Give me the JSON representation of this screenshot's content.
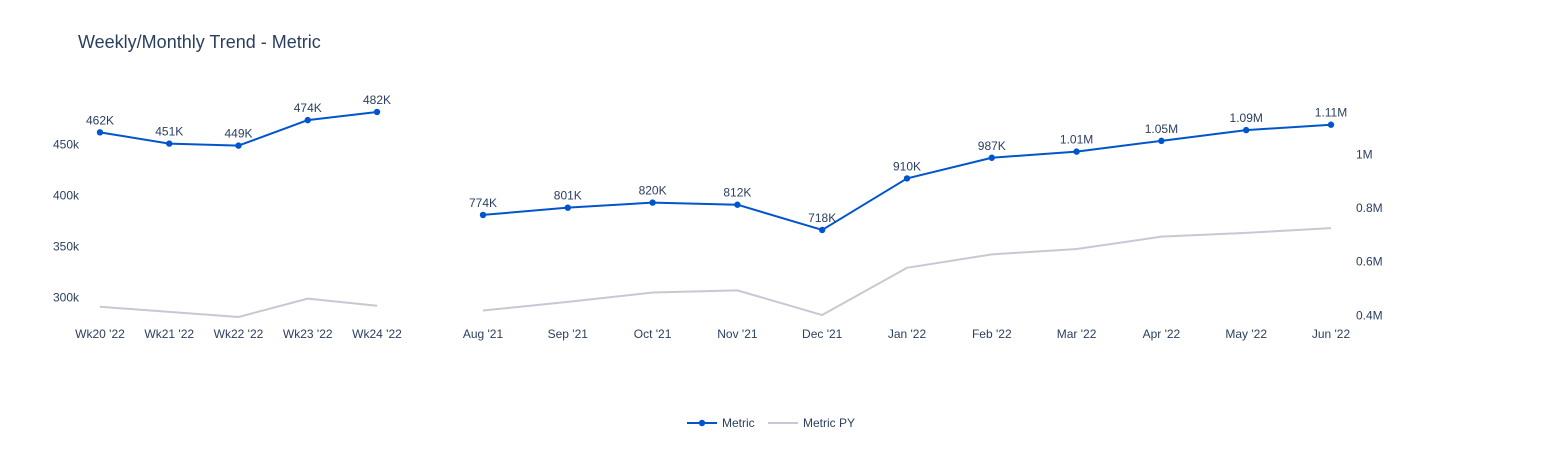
{
  "title": "Weekly/Monthly Trend - Metric",
  "colors": {
    "metric": "#0055cc",
    "metric_py": "#c8c8d4",
    "text": "#2a3f5f"
  },
  "legend": {
    "placement": "bottom-center",
    "items": [
      "Metric",
      "Metric PY"
    ]
  },
  "chart_data": [
    {
      "type": "line",
      "title": "Weekly/Monthly Trend - Metric",
      "categories": [
        "Wk20 '22",
        "Wk21 '22",
        "Wk22 '22",
        "Wk23 '22",
        "Wk24 '22"
      ],
      "ylim": [
        280000,
        480000
      ],
      "yticks": [
        300000,
        350000,
        400000,
        450000
      ],
      "ytick_labels": [
        "300k",
        "350k",
        "400k",
        "450k"
      ],
      "y_axis_side": "left",
      "grid": false,
      "series": [
        {
          "name": "Metric",
          "values": [
            462000,
            451000,
            449000,
            474000,
            482000
          ],
          "labels": [
            "462K",
            "451K",
            "449K",
            "474K",
            "482K"
          ],
          "markers": true
        },
        {
          "name": "Metric PY",
          "values": [
            291000,
            286000,
            281000,
            299000,
            292000
          ],
          "markers": false
        }
      ]
    },
    {
      "type": "line",
      "categories": [
        "Aug '21",
        "Sep '21",
        "Oct '21",
        "Nov '21",
        "Dec '21",
        "Jan '22",
        "Feb '22",
        "Mar '22",
        "Apr '22",
        "May '22",
        "Jun '22"
      ],
      "ylim": [
        390000,
        1150000
      ],
      "yticks": [
        400000,
        600000,
        800000,
        1000000
      ],
      "ytick_labels": [
        "0.4M",
        "0.6M",
        "0.8M",
        "1M"
      ],
      "y_axis_side": "right",
      "grid": false,
      "series": [
        {
          "name": "Metric",
          "values": [
            774000,
            801000,
            820000,
            812000,
            718000,
            910000,
            987000,
            1010000,
            1050000,
            1090000,
            1110000
          ],
          "labels": [
            "774K",
            "801K",
            "820K",
            "812K",
            "718K",
            "910K",
            "987K",
            "1.01M",
            "1.05M",
            "1.09M",
            "1.11M"
          ],
          "markers": true
        },
        {
          "name": "Metric PY",
          "values": [
            418000,
            450000,
            485000,
            493000,
            401000,
            577000,
            627000,
            647000,
            693000,
            707000,
            725000
          ],
          "markers": false
        }
      ]
    }
  ]
}
